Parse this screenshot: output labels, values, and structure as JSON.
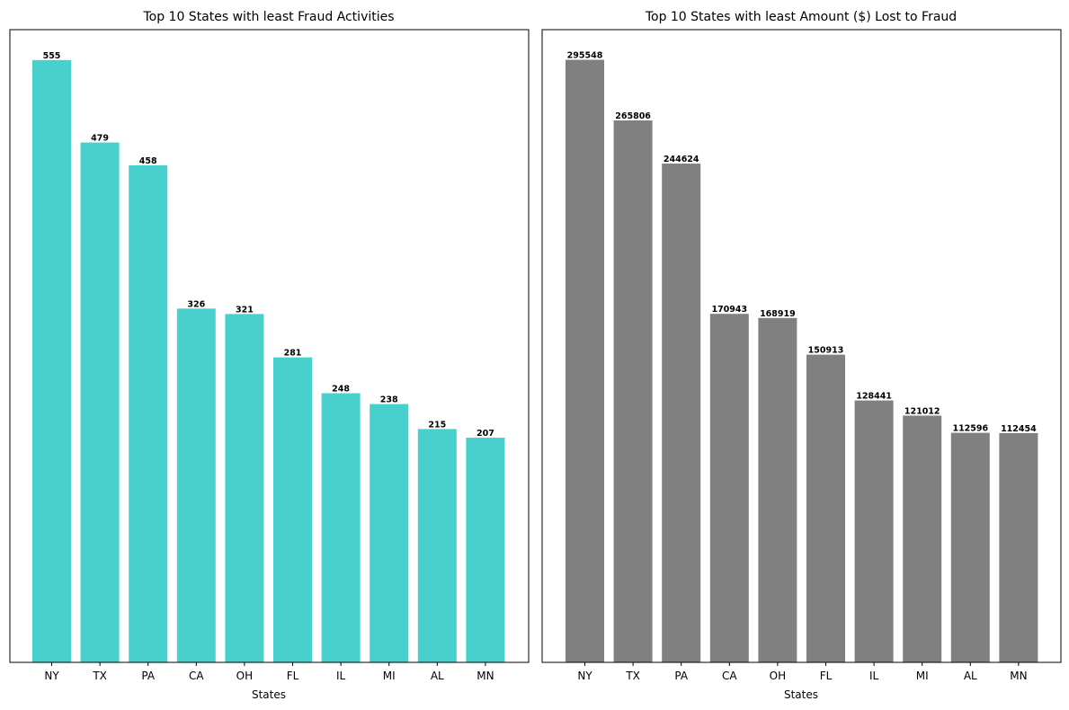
{
  "chart_data": [
    {
      "type": "bar",
      "title": "Top 10 States with least Fraud Activities",
      "xlabel": "States",
      "ylabel": "",
      "categories": [
        "NY",
        "TX",
        "PA",
        "CA",
        "OH",
        "FL",
        "IL",
        "MI",
        "AL",
        "MN"
      ],
      "values": [
        555,
        479,
        458,
        326,
        321,
        281,
        248,
        238,
        215,
        207
      ],
      "data_labels": [
        "555",
        "479",
        "458",
        "326",
        "321",
        "281",
        "248",
        "238",
        "215",
        "207"
      ],
      "ylim": [
        0,
        583
      ],
      "color": "#48d1cc",
      "grid": false,
      "y_ticks_visible": false
    },
    {
      "type": "bar",
      "title": "Top 10 States with least Amount ($) Lost to Fraud",
      "xlabel": "States",
      "ylabel": "",
      "categories": [
        "NY",
        "TX",
        "PA",
        "CA",
        "OH",
        "FL",
        "IL",
        "MI",
        "AL",
        "MN"
      ],
      "values": [
        295548,
        265806,
        244624,
        170943,
        168919,
        150913,
        128441,
        121012,
        112596,
        112454
      ],
      "data_labels": [
        "295548",
        "265806",
        "244624",
        "170943",
        "168919",
        "150913",
        "128441",
        "121012",
        "112596",
        "112454"
      ],
      "ylim": [
        0,
        310325
      ],
      "color": "#808080",
      "grid": false,
      "y_ticks_visible": false
    }
  ]
}
